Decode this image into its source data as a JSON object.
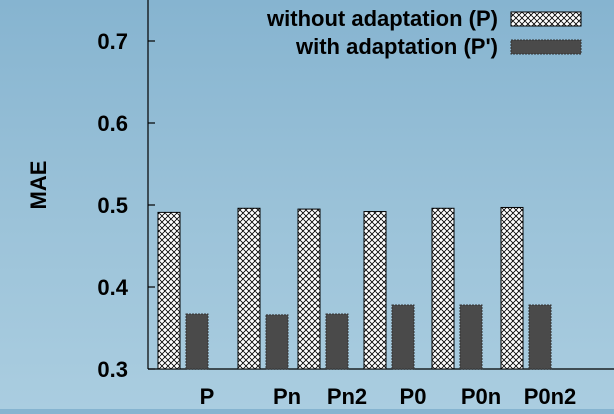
{
  "chart_data": {
    "type": "bar",
    "title": "",
    "xlabel": "",
    "ylabel": "MAE",
    "ylim": [
      0.3,
      0.75
    ],
    "yticks": [
      0.3,
      0.4,
      0.5,
      0.6,
      0.7
    ],
    "ytick_labels": [
      "0.3",
      "0.4",
      "0.5",
      "0.6",
      "0.7"
    ],
    "categories": [
      "P",
      "Pn",
      "Pn2",
      "P0",
      "P0n",
      "P0n2"
    ],
    "series": [
      {
        "name": "without adaptation (P)",
        "values": [
          0.491,
          0.496,
          0.495,
          0.492,
          0.496,
          0.497
        ],
        "pattern": "crosshatch",
        "color": "#ffffff"
      },
      {
        "name": "with adaptation (P')",
        "values": [
          0.367,
          0.366,
          0.367,
          0.378,
          0.378,
          0.378
        ],
        "pattern": "solid",
        "color": "#4a4a4a"
      }
    ],
    "legend_position": "top-right",
    "grid": false
  }
}
